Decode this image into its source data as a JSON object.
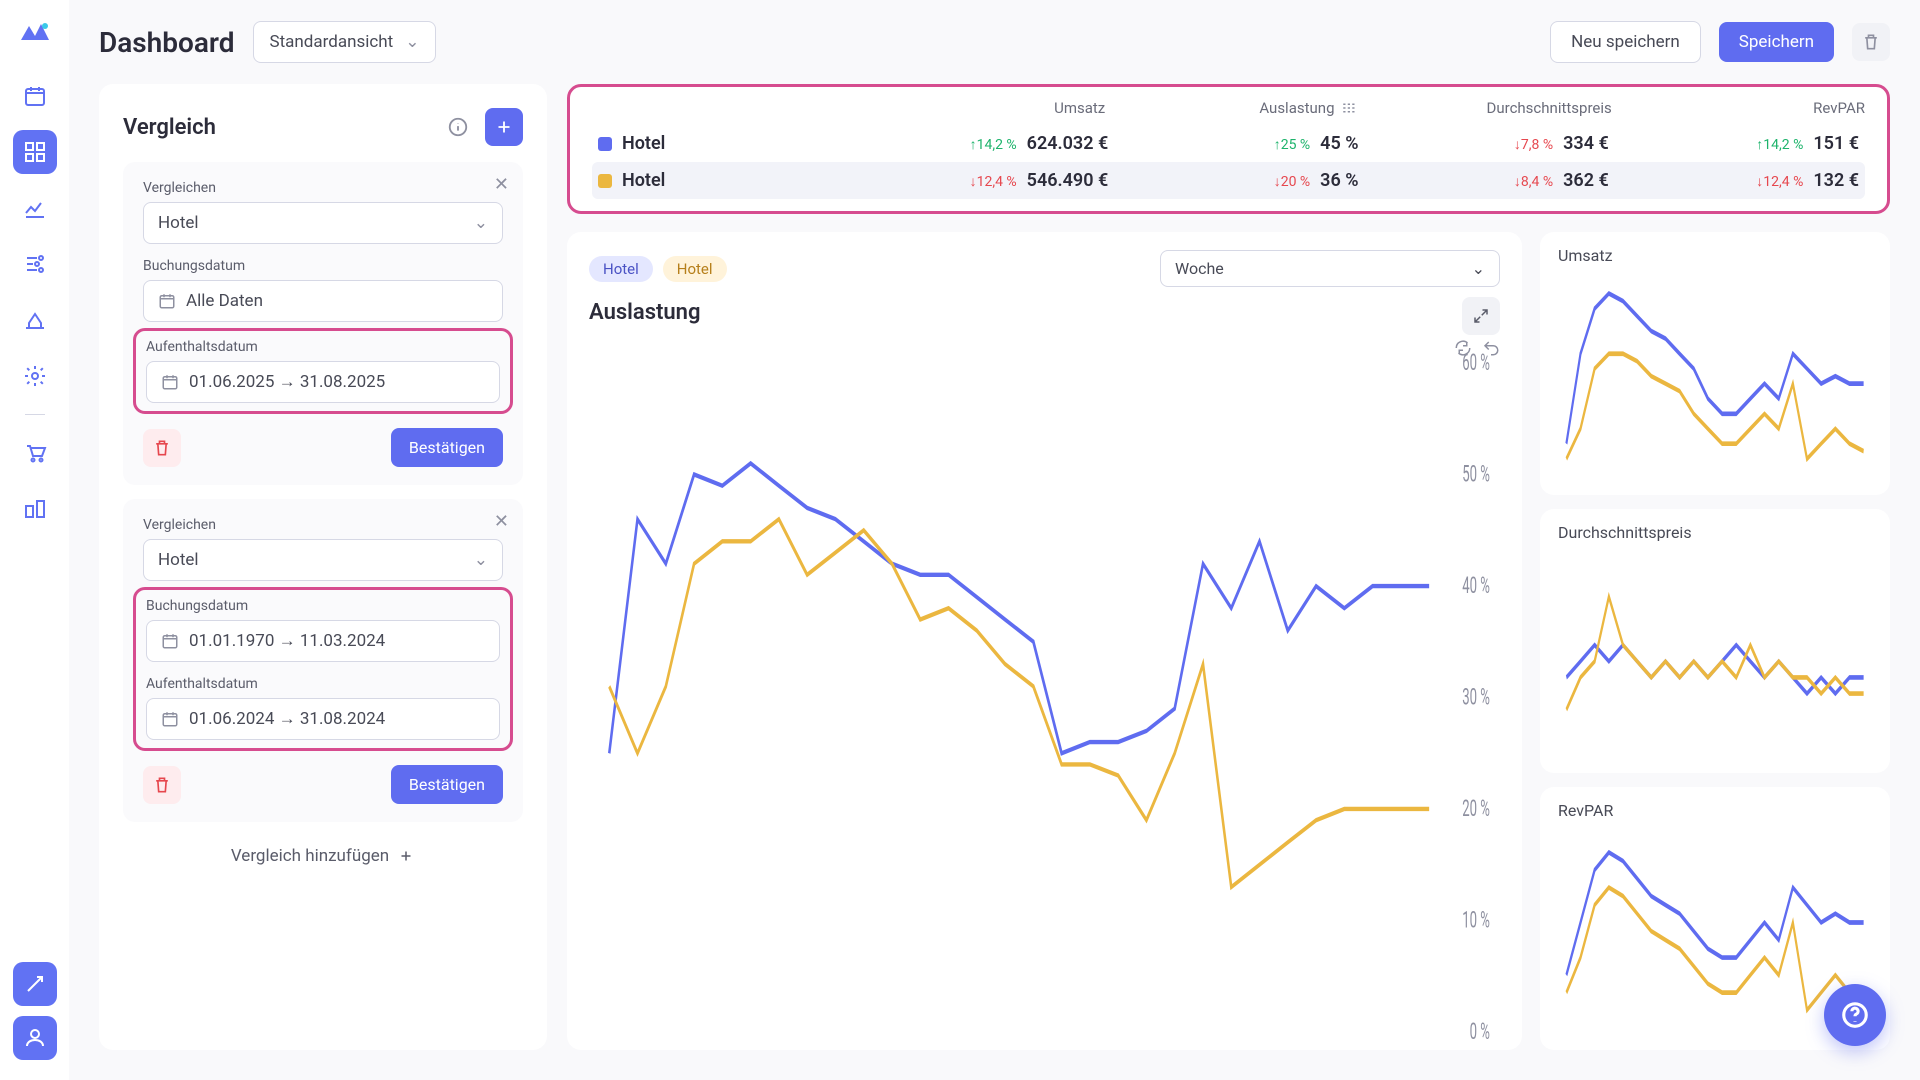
{
  "header": {
    "title": "Dashboard",
    "view_select": "Standardansicht",
    "btn_save_new": "Neu speichern",
    "btn_save": "Speichern"
  },
  "left": {
    "title": "Vergleich",
    "card1": {
      "compare_label": "Vergleichen",
      "compare_value": "Hotel",
      "booking_label": "Buchungsdatum",
      "booking_value": "Alle Daten",
      "stay_label": "Aufenthaltsdatum",
      "stay_value": "01.06.2025 → 31.08.2025",
      "confirm": "Bestätigen"
    },
    "card2": {
      "compare_label": "Vergleichen",
      "compare_value": "Hotel",
      "booking_label": "Buchungsdatum",
      "booking_value": "01.01.1970 → 11.03.2024",
      "stay_label": "Aufenthaltsdatum",
      "stay_value": "01.06.2024 → 31.08.2024",
      "confirm": "Bestätigen"
    },
    "add_compare": "Vergleich hinzufügen"
  },
  "stats": {
    "headers": {
      "umsatz": "Umsatz",
      "auslastung": "Auslastung",
      "adr": "Durchschnittspreis",
      "revpar": "RevPAR"
    },
    "rows": [
      {
        "name": "Hotel",
        "color": "#5f6cf0",
        "umsatz_delta": "14,2 %",
        "umsatz_dir": "up",
        "umsatz_val": "624.032 €",
        "ausl_delta": "25 %",
        "ausl_dir": "up",
        "ausl_val": "45 %",
        "adr_delta": "7,8 %",
        "adr_dir": "down",
        "adr_val": "334 €",
        "revpar_delta": "14,2 %",
        "revpar_dir": "up",
        "revpar_val": "151 €"
      },
      {
        "name": "Hotel",
        "color": "#ebb740",
        "umsatz_delta": "12,4 %",
        "umsatz_dir": "down",
        "umsatz_val": "546.490 €",
        "ausl_delta": "20 %",
        "ausl_dir": "down",
        "ausl_val": "36 %",
        "adr_delta": "8,4 %",
        "adr_dir": "down",
        "adr_val": "362 €",
        "revpar_delta": "12,4 %",
        "revpar_dir": "down",
        "revpar_val": "132 €"
      }
    ]
  },
  "chart": {
    "pill_blue": "Hotel",
    "pill_amber": "Hotel",
    "granularity": "Woche",
    "title": "Auslastung",
    "ylim": [
      0,
      60
    ],
    "ytick_step": 10,
    "yticks": [
      "0 %",
      "10 %",
      "20 %",
      "30 %",
      "40 %",
      "50 %",
      "60 %"
    ],
    "colors": {
      "blue": "#5f6cf0",
      "amber": "#ebb740",
      "grid": "#eef0f5"
    },
    "series_blue": [
      25,
      46,
      42,
      50,
      49,
      51,
      49,
      47,
      46,
      44,
      42,
      41,
      41,
      39,
      37,
      35,
      25,
      26,
      26,
      27,
      29,
      42,
      38,
      44,
      36,
      40,
      38,
      40,
      40,
      40
    ],
    "series_amber": [
      31,
      25,
      31,
      42,
      44,
      44,
      46,
      41,
      43,
      45,
      42,
      37,
      38,
      36,
      33,
      31,
      24,
      24,
      23,
      19,
      25,
      33,
      13,
      15,
      17,
      19,
      20,
      20,
      20,
      20
    ]
  },
  "minis": {
    "umsatz": {
      "title": "Umsatz",
      "blue": [
        18,
        30,
        36,
        38,
        37,
        35,
        33,
        32,
        30,
        28,
        24,
        22,
        22,
        24,
        26,
        24,
        30,
        28,
        26,
        27,
        26,
        26
      ],
      "amber": [
        16,
        20,
        28,
        30,
        30,
        29,
        27,
        26,
        25,
        22,
        20,
        18,
        18,
        20,
        22,
        20,
        26,
        16,
        18,
        20,
        18,
        17
      ]
    },
    "adr": {
      "title": "Durchschnittspreis",
      "blue": [
        22,
        23,
        24,
        23,
        24,
        23,
        22,
        23,
        22,
        23,
        22,
        23,
        24,
        23,
        22,
        23,
        22,
        21,
        22,
        21,
        22,
        22
      ],
      "amber": [
        20,
        22,
        23,
        27,
        24,
        23,
        22,
        23,
        22,
        23,
        22,
        23,
        22,
        24,
        22,
        23,
        22,
        22,
        21,
        22,
        21,
        21
      ]
    },
    "revpar": {
      "title": "RevPAR",
      "blue": [
        18,
        24,
        30,
        32,
        31,
        29,
        27,
        26,
        25,
        23,
        21,
        20,
        20,
        22,
        24,
        22,
        28,
        26,
        24,
        25,
        24,
        24
      ],
      "amber": [
        16,
        20,
        26,
        28,
        27,
        25,
        23,
        22,
        21,
        19,
        17,
        16,
        16,
        18,
        20,
        18,
        24,
        14,
        16,
        18,
        16,
        15
      ]
    }
  },
  "colors": {
    "highlight": "#d64c8f",
    "primary": "#5f6cf0",
    "amber": "#ebb740"
  }
}
